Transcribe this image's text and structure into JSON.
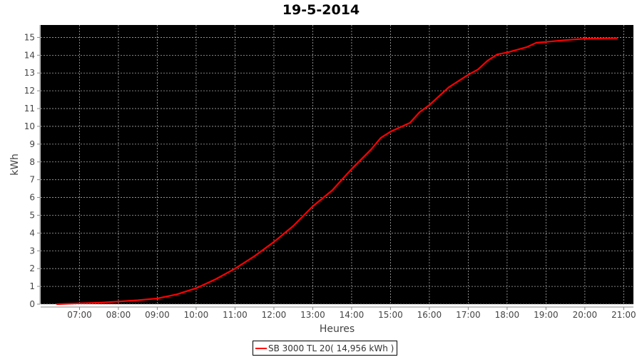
{
  "chart_data": {
    "type": "line",
    "title": "19-5-2014",
    "xlabel": "Heures",
    "ylabel": "kWh",
    "xlim": [
      "06:00",
      "21:15"
    ],
    "ylim": [
      0,
      15.7
    ],
    "x_ticks": [
      "07:00",
      "08:00",
      "09:00",
      "10:00",
      "11:00",
      "12:00",
      "13:00",
      "14:00",
      "15:00",
      "16:00",
      "17:00",
      "18:00",
      "19:00",
      "20:00",
      "21:00"
    ],
    "y_ticks": [
      0,
      1,
      2,
      3,
      4,
      5,
      6,
      7,
      8,
      9,
      10,
      11,
      12,
      13,
      14,
      15
    ],
    "grid": true,
    "background": "#000000",
    "legend_placement": "bottom",
    "series": [
      {
        "name": "SB 3000 TL 20( 14,956 kWh )",
        "color": "#ff0000",
        "x": [
          "06:25",
          "07:00",
          "07:30",
          "08:00",
          "08:30",
          "09:00",
          "09:30",
          "10:00",
          "10:30",
          "11:00",
          "11:30",
          "12:00",
          "12:30",
          "13:00",
          "13:30",
          "14:00",
          "14:30",
          "14:45",
          "15:00",
          "15:30",
          "15:45",
          "16:00",
          "16:30",
          "17:00",
          "17:15",
          "17:30",
          "17:45",
          "18:00",
          "18:30",
          "18:45",
          "19:00",
          "19:30",
          "20:00",
          "20:30",
          "20:50"
        ],
        "y": [
          0,
          0.05,
          0.08,
          0.15,
          0.22,
          0.32,
          0.55,
          0.9,
          1.4,
          2.0,
          2.7,
          3.5,
          4.4,
          5.5,
          6.4,
          7.6,
          8.7,
          9.35,
          9.7,
          10.2,
          10.8,
          11.2,
          12.2,
          12.9,
          13.2,
          13.7,
          14.05,
          14.15,
          14.45,
          14.7,
          14.75,
          14.85,
          14.93,
          14.95,
          14.956
        ]
      }
    ]
  }
}
